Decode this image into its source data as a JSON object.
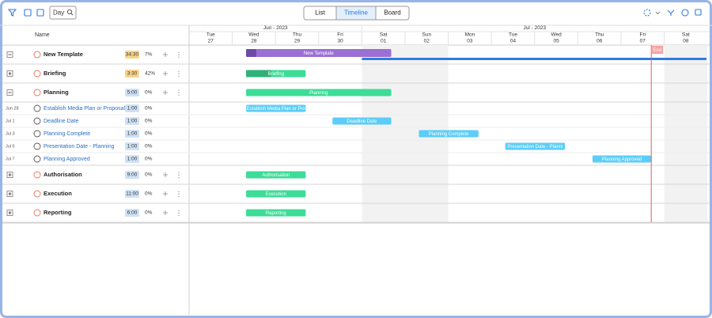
{
  "toolbar": {
    "search": "Day",
    "tabs": [
      "List",
      "Timeline",
      "Board"
    ],
    "active_tab": 1
  },
  "list": {
    "header": "Name",
    "rows": [
      {
        "kind": "group",
        "expanded": true,
        "name": "New Template",
        "duration": "34:30",
        "duration_color": "#f8d48c",
        "progress": "7%",
        "bar": {
          "label": "New Template",
          "start": 1.32,
          "end": 4.68,
          "color": "#9b6fd3",
          "done_color": "#6d4aa8"
        },
        "line": {
          "start": 4.0,
          "end": 12.0,
          "color": "#2f7be0"
        }
      },
      {
        "kind": "group",
        "expanded": false,
        "name": "Briefing",
        "duration": "3:30",
        "duration_color": "#f8d48c",
        "progress": "42%",
        "bar": {
          "label": "Briefing",
          "start": 1.32,
          "end": 2.7,
          "color": "#3ddc97",
          "done_color": "#2fb177"
        }
      },
      {
        "kind": "group",
        "expanded": true,
        "name": "Planning",
        "duration": "5:00",
        "duration_color": "#cfe2f5",
        "progress": "0%",
        "bar": {
          "label": "Planning",
          "start": 1.32,
          "end": 4.68,
          "color": "#3ddc97"
        }
      },
      {
        "kind": "task",
        "date": "Jun 28",
        "name": "Establish Media Plan or Proposal",
        "duration": "1:00",
        "duration_color": "#cfe2f5",
        "progress": "0%",
        "bar": {
          "label": "Establish Media Plan or Pro",
          "start": 1.32,
          "end": 2.7,
          "color": "#5bcdf8"
        }
      },
      {
        "kind": "task",
        "date": "Jul 1",
        "name": "Deadline Date",
        "duration": "1:00",
        "duration_color": "#cfe2f5",
        "progress": "0%",
        "bar": {
          "label": "Deadline Date",
          "start": 3.32,
          "end": 4.68,
          "color": "#5bcdf8"
        }
      },
      {
        "kind": "task",
        "date": "Jul 3",
        "name": "Planning Complete",
        "duration": "1:00",
        "duration_color": "#cfe2f5",
        "progress": "0%",
        "bar": {
          "label": "Planning Complete",
          "start": 5.32,
          "end": 6.7,
          "color": "#5bcdf8"
        }
      },
      {
        "kind": "task",
        "date": "Jul 5",
        "name": "Presentation Date - Planning",
        "duration": "1:00",
        "duration_color": "#cfe2f5",
        "progress": "0%",
        "bar": {
          "label": "Presentation Date - Planni",
          "start": 7.32,
          "end": 8.7,
          "color": "#5bcdf8"
        }
      },
      {
        "kind": "task",
        "date": "Jul 7",
        "name": "Planning Approved",
        "duration": "1:00",
        "duration_color": "#cfe2f5",
        "progress": "0%",
        "bar": {
          "label": "Planning Approved",
          "start": 9.34,
          "end": 10.7,
          "color": "#5bcdf8"
        }
      },
      {
        "kind": "group",
        "expanded": false,
        "name": "Authorisation",
        "duration": "9:00",
        "duration_color": "#cfe2f5",
        "progress": "0%",
        "bar": {
          "label": "Authorisation",
          "start": 1.32,
          "end": 2.7,
          "color": "#3ddc97"
        }
      },
      {
        "kind": "group",
        "expanded": false,
        "name": "Execution",
        "duration": "11:00",
        "duration_color": "#cfe2f5",
        "progress": "0%",
        "bar": {
          "label": "Execution",
          "start": 1.32,
          "end": 2.7,
          "color": "#3ddc97"
        }
      },
      {
        "kind": "group",
        "expanded": false,
        "name": "Reporting",
        "duration": "6:00",
        "duration_color": "#cfe2f5",
        "progress": "0%",
        "bar": {
          "label": "Reporting",
          "start": 1.32,
          "end": 2.7,
          "color": "#3ddc97"
        }
      }
    ]
  },
  "timeline": {
    "months": [
      {
        "label": "Jun - 2023",
        "start": 0,
        "end": 4
      },
      {
        "label": "Jul - 2023",
        "start": 4,
        "end": 12
      }
    ],
    "days": [
      {
        "weekday": "Tue",
        "day": "27"
      },
      {
        "weekday": "Wed",
        "day": "28"
      },
      {
        "weekday": "Thu",
        "day": "29"
      },
      {
        "weekday": "Fri",
        "day": "30"
      },
      {
        "weekday": "Sat",
        "day": "01",
        "shaded": true
      },
      {
        "weekday": "Sun",
        "day": "02",
        "shaded": true
      },
      {
        "weekday": "Mon",
        "day": "03"
      },
      {
        "weekday": "Tue",
        "day": "04"
      },
      {
        "weekday": "Wed",
        "day": "05"
      },
      {
        "weekday": "Thu",
        "day": "06"
      },
      {
        "weekday": "Fri",
        "day": "07"
      },
      {
        "weekday": "Sat",
        "day": "08",
        "shaded": true
      }
    ],
    "end_marker": {
      "label": "End",
      "at": 10.7
    }
  }
}
